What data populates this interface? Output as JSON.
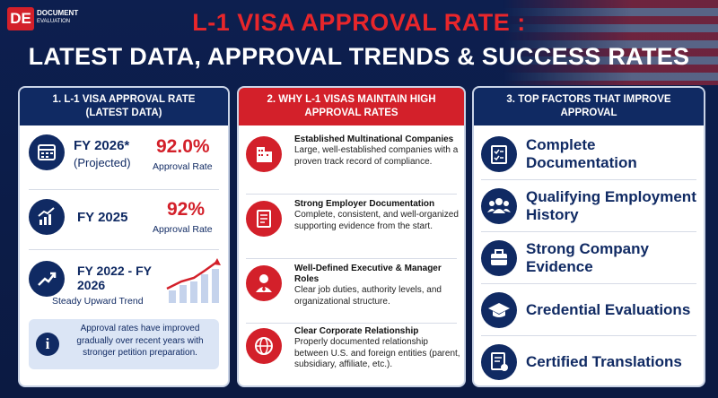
{
  "logo": {
    "letters": "DE",
    "line1": "DOCUMENT",
    "line2": "EVALUATION"
  },
  "header": {
    "title": "L-1 VISA APPROVAL RATE :",
    "subtitle": "LATEST DATA, APPROVAL TRENDS & SUCCESS RATES"
  },
  "panel1": {
    "heading": "1. L-1 VISA APPROVAL RATE (LATEST DATA)",
    "items": [
      {
        "label": "FY 2026*",
        "sub": "(Projected)",
        "rate": "92.0%",
        "rate_label": "Approval Rate"
      },
      {
        "label": "FY 2025",
        "rate": "92%",
        "rate_label": "Approval Rate"
      },
      {
        "label": "FY 2022 - FY 2026",
        "sub": "Steady Upward Trend"
      }
    ],
    "note": "Approval rates have improved gradually over recent years with stronger petition preparation."
  },
  "panel2": {
    "heading": "2. WHY L-1 VISAS MAINTAIN HIGH APPROVAL RATES",
    "items": [
      {
        "title": "Established Multinational Companies",
        "text": "Large, well-established companies with a proven track record of compliance."
      },
      {
        "title": "Strong Employer Documentation",
        "text": "Complete, consistent, and well-organized supporting evidence from the start."
      },
      {
        "title": "Well-Defined Executive & Manager Roles",
        "text": "Clear job duties, authority levels, and organizational structure."
      },
      {
        "title": "Clear Corporate Relationship",
        "text": "Properly documented relationship between U.S. and foreign entities (parent, subsidiary, affiliate, etc.)."
      }
    ]
  },
  "panel3": {
    "heading": "3. TOP FACTORS THAT IMPROVE APPROVAL",
    "items": [
      "Complete Documentation",
      "Qualifying Employment History",
      "Strong Company Evidence",
      "Credential Evaluations",
      "Certified Translations"
    ]
  }
}
